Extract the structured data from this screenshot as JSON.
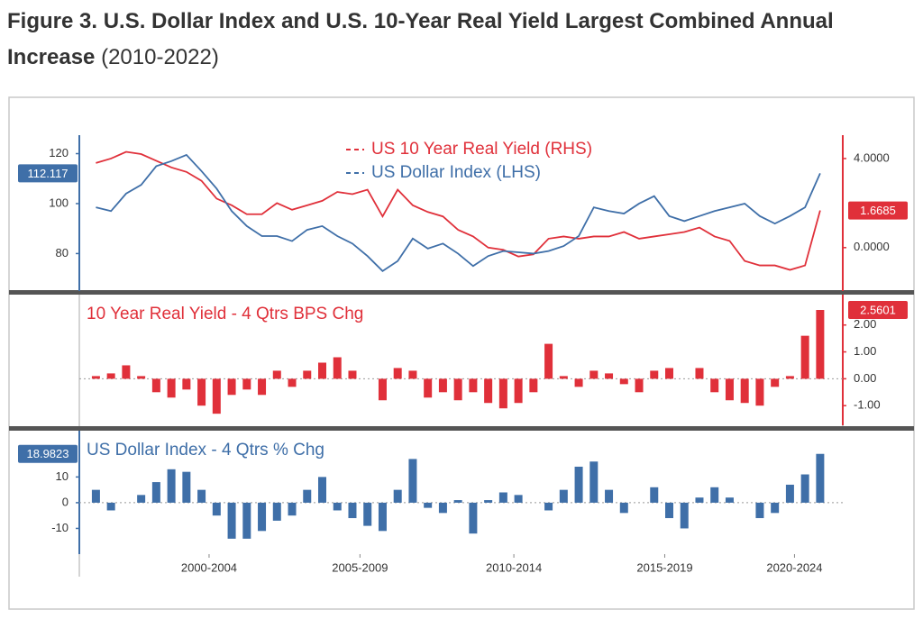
{
  "header": {
    "title_bold": "Figure 3. U.S. Dollar Index and U.S. 10-Year Real Yield Largest Combined Annual Increase",
    "title_rest": "(2010-2022)"
  },
  "chart_data": [
    {
      "type": "line",
      "yaxis_side": "left",
      "legend": "top-center",
      "x": [
        1998.75,
        1999.25,
        1999.75,
        2000.25,
        2000.75,
        2001.25,
        2001.75,
        2002.25,
        2002.75,
        2003.25,
        2003.75,
        2004.25,
        2004.75,
        2005.25,
        2005.75,
        2006.25,
        2006.75,
        2007.25,
        2007.75,
        2008.25,
        2008.75,
        2009.25,
        2009.75,
        2010.25,
        2010.75,
        2011.25,
        2011.75,
        2012.25,
        2012.75,
        2013.25,
        2013.75,
        2014.25,
        2014.75,
        2015.25,
        2015.75,
        2016.25,
        2016.75,
        2017.25,
        2017.75,
        2018.25,
        2018.75,
        2019.25,
        2019.75,
        2020.25,
        2020.75,
        2021.25,
        2021.75,
        2022.25,
        2022.75
      ],
      "xlim": [
        1998.2,
        2023.5
      ],
      "ylim": [
        65,
        127.4
      ],
      "yticks": [
        80,
        100,
        120
      ],
      "y2lim": [
        -1.95,
        5.05
      ],
      "y2ticks": [
        {
          "value": 0,
          "label": "0.0000"
        },
        {
          "value": 4,
          "label": "4.0000"
        }
      ],
      "series": [
        {
          "name": "US 10 Year Real Yield  (RHS)",
          "color": "#e0303a",
          "axis": "y2",
          "values": [
            3.8,
            4,
            4.3,
            4.2,
            3.9,
            3.6,
            3.4,
            3.0,
            2.2,
            1.9,
            1.5,
            1.5,
            2.0,
            1.7,
            1.9,
            2.1,
            2.5,
            2.4,
            2.6,
            1.4,
            2.6,
            1.9,
            1.6,
            1.4,
            0.8,
            0.5,
            0.0,
            -0.1,
            -0.4,
            -0.3,
            0.4,
            0.5,
            0.4,
            0.5,
            0.5,
            0.7,
            0.4,
            0.5,
            0.6,
            0.7,
            0.9,
            0.5,
            0.3,
            -0.6,
            -0.8,
            -0.8,
            -1.0,
            -0.8,
            1.6685
          ]
        },
        {
          "name": "US Dollar Index (LHS)",
          "color": "#3f6fa8",
          "values": [
            98.5,
            97,
            104,
            107.5,
            115,
            117,
            119.5,
            113,
            106,
            97,
            91,
            87,
            87,
            85,
            89.5,
            91,
            87,
            84,
            79,
            73,
            77,
            86,
            82,
            84,
            80,
            75,
            79,
            81,
            80.5,
            80,
            81,
            83,
            87,
            98.5,
            97,
            96,
            100,
            103,
            95,
            93,
            95,
            97,
            98.5,
            100,
            95,
            92,
            95,
            98.5,
            112.117
          ]
        }
      ]
    },
    {
      "type": "bar",
      "yaxis_side": "right",
      "title": "10 Year Real Yield - 4 Qtrs BPS Chg",
      "x": [
        1998.75,
        1999.25,
        1999.75,
        2000.25,
        2000.75,
        2001.25,
        2001.75,
        2002.25,
        2002.75,
        2003.25,
        2003.75,
        2004.25,
        2004.75,
        2005.25,
        2005.75,
        2006.25,
        2006.75,
        2007.25,
        2007.75,
        2008.25,
        2008.75,
        2009.25,
        2009.75,
        2010.25,
        2010.75,
        2011.25,
        2011.75,
        2012.25,
        2012.75,
        2013.25,
        2013.75,
        2014.25,
        2014.75,
        2015.25,
        2015.75,
        2016.25,
        2016.75,
        2017.25,
        2017.75,
        2018.25,
        2018.75,
        2019.25,
        2019.75,
        2020.25,
        2020.75,
        2021.25,
        2021.75,
        2022.25,
        2022.75
      ],
      "xlim": [
        1998.2,
        2023.5
      ],
      "ylim": [
        -1.73,
        3.13
      ],
      "yticks": [
        {
          "value": -1,
          "label": "-1.00"
        },
        {
          "value": 0,
          "label": "0.00"
        },
        {
          "value": 1,
          "label": "1.00"
        },
        {
          "value": 2,
          "label": "2.00"
        }
      ],
      "series": [
        {
          "color": "#e0303a",
          "values": [
            0.1,
            0.2,
            0.5,
            0.1,
            -0.5,
            -0.7,
            -0.4,
            -1.0,
            -1.3,
            -0.6,
            -0.4,
            -0.6,
            0.3,
            -0.3,
            0.3,
            0.6,
            0.8,
            0.3,
            0,
            -0.8,
            0.4,
            0.3,
            -0.7,
            -0.5,
            -0.8,
            -0.5,
            -0.9,
            -1.1,
            -0.9,
            -0.5,
            1.3,
            0.1,
            -0.3,
            0.3,
            0.2,
            -0.2,
            -0.5,
            0.3,
            0.4,
            0,
            0.4,
            -0.5,
            -0.8,
            -0.9,
            -1.0,
            -0.3,
            0.1,
            1.6,
            2.5601
          ]
        }
      ]
    },
    {
      "type": "bar",
      "yaxis_side": "left",
      "title": "US Dollar Index - 4 Qtrs % Chg",
      "x": [
        1998.75,
        1999.25,
        1999.75,
        2000.25,
        2000.75,
        2001.25,
        2001.75,
        2002.25,
        2002.75,
        2003.25,
        2003.75,
        2004.25,
        2004.75,
        2005.25,
        2005.75,
        2006.25,
        2006.75,
        2007.25,
        2007.75,
        2008.25,
        2008.75,
        2009.25,
        2009.75,
        2010.25,
        2010.75,
        2011.25,
        2011.75,
        2012.25,
        2012.75,
        2013.25,
        2013.75,
        2014.25,
        2014.75,
        2015.25,
        2015.75,
        2016.25,
        2016.75,
        2017.25,
        2017.75,
        2018.25,
        2018.75,
        2019.25,
        2019.75,
        2020.25,
        2020.75,
        2021.25,
        2021.75,
        2022.25,
        2022.75
      ],
      "xlim": [
        1998.2,
        2023.5
      ],
      "xticks": [
        {
          "value": 2002.5,
          "label": "2000-2004"
        },
        {
          "value": 2007.5,
          "label": "2005-2009"
        },
        {
          "value": 2012.6,
          "label": "2010-2014"
        },
        {
          "value": 2017.6,
          "label": "2015-2019"
        },
        {
          "value": 2021.9,
          "label": "2020-2024"
        }
      ],
      "ylim": [
        -20,
        28
      ],
      "yticks": [
        -10,
        0,
        10
      ],
      "series": [
        {
          "color": "#3f6fa8",
          "values": [
            5,
            -3,
            0,
            3,
            8,
            13,
            12,
            5,
            -5,
            -14,
            -14,
            -11,
            -7,
            -5,
            5,
            10,
            -3,
            -6,
            -9,
            -11,
            5,
            17,
            -2,
            -4,
            1,
            -12,
            1,
            4,
            3,
            0,
            -3,
            5,
            14,
            16,
            5,
            -4,
            0,
            6,
            -6,
            -10,
            2,
            6,
            2,
            0,
            -6,
            -4,
            7,
            11,
            18.9823
          ]
        }
      ]
    }
  ]
}
